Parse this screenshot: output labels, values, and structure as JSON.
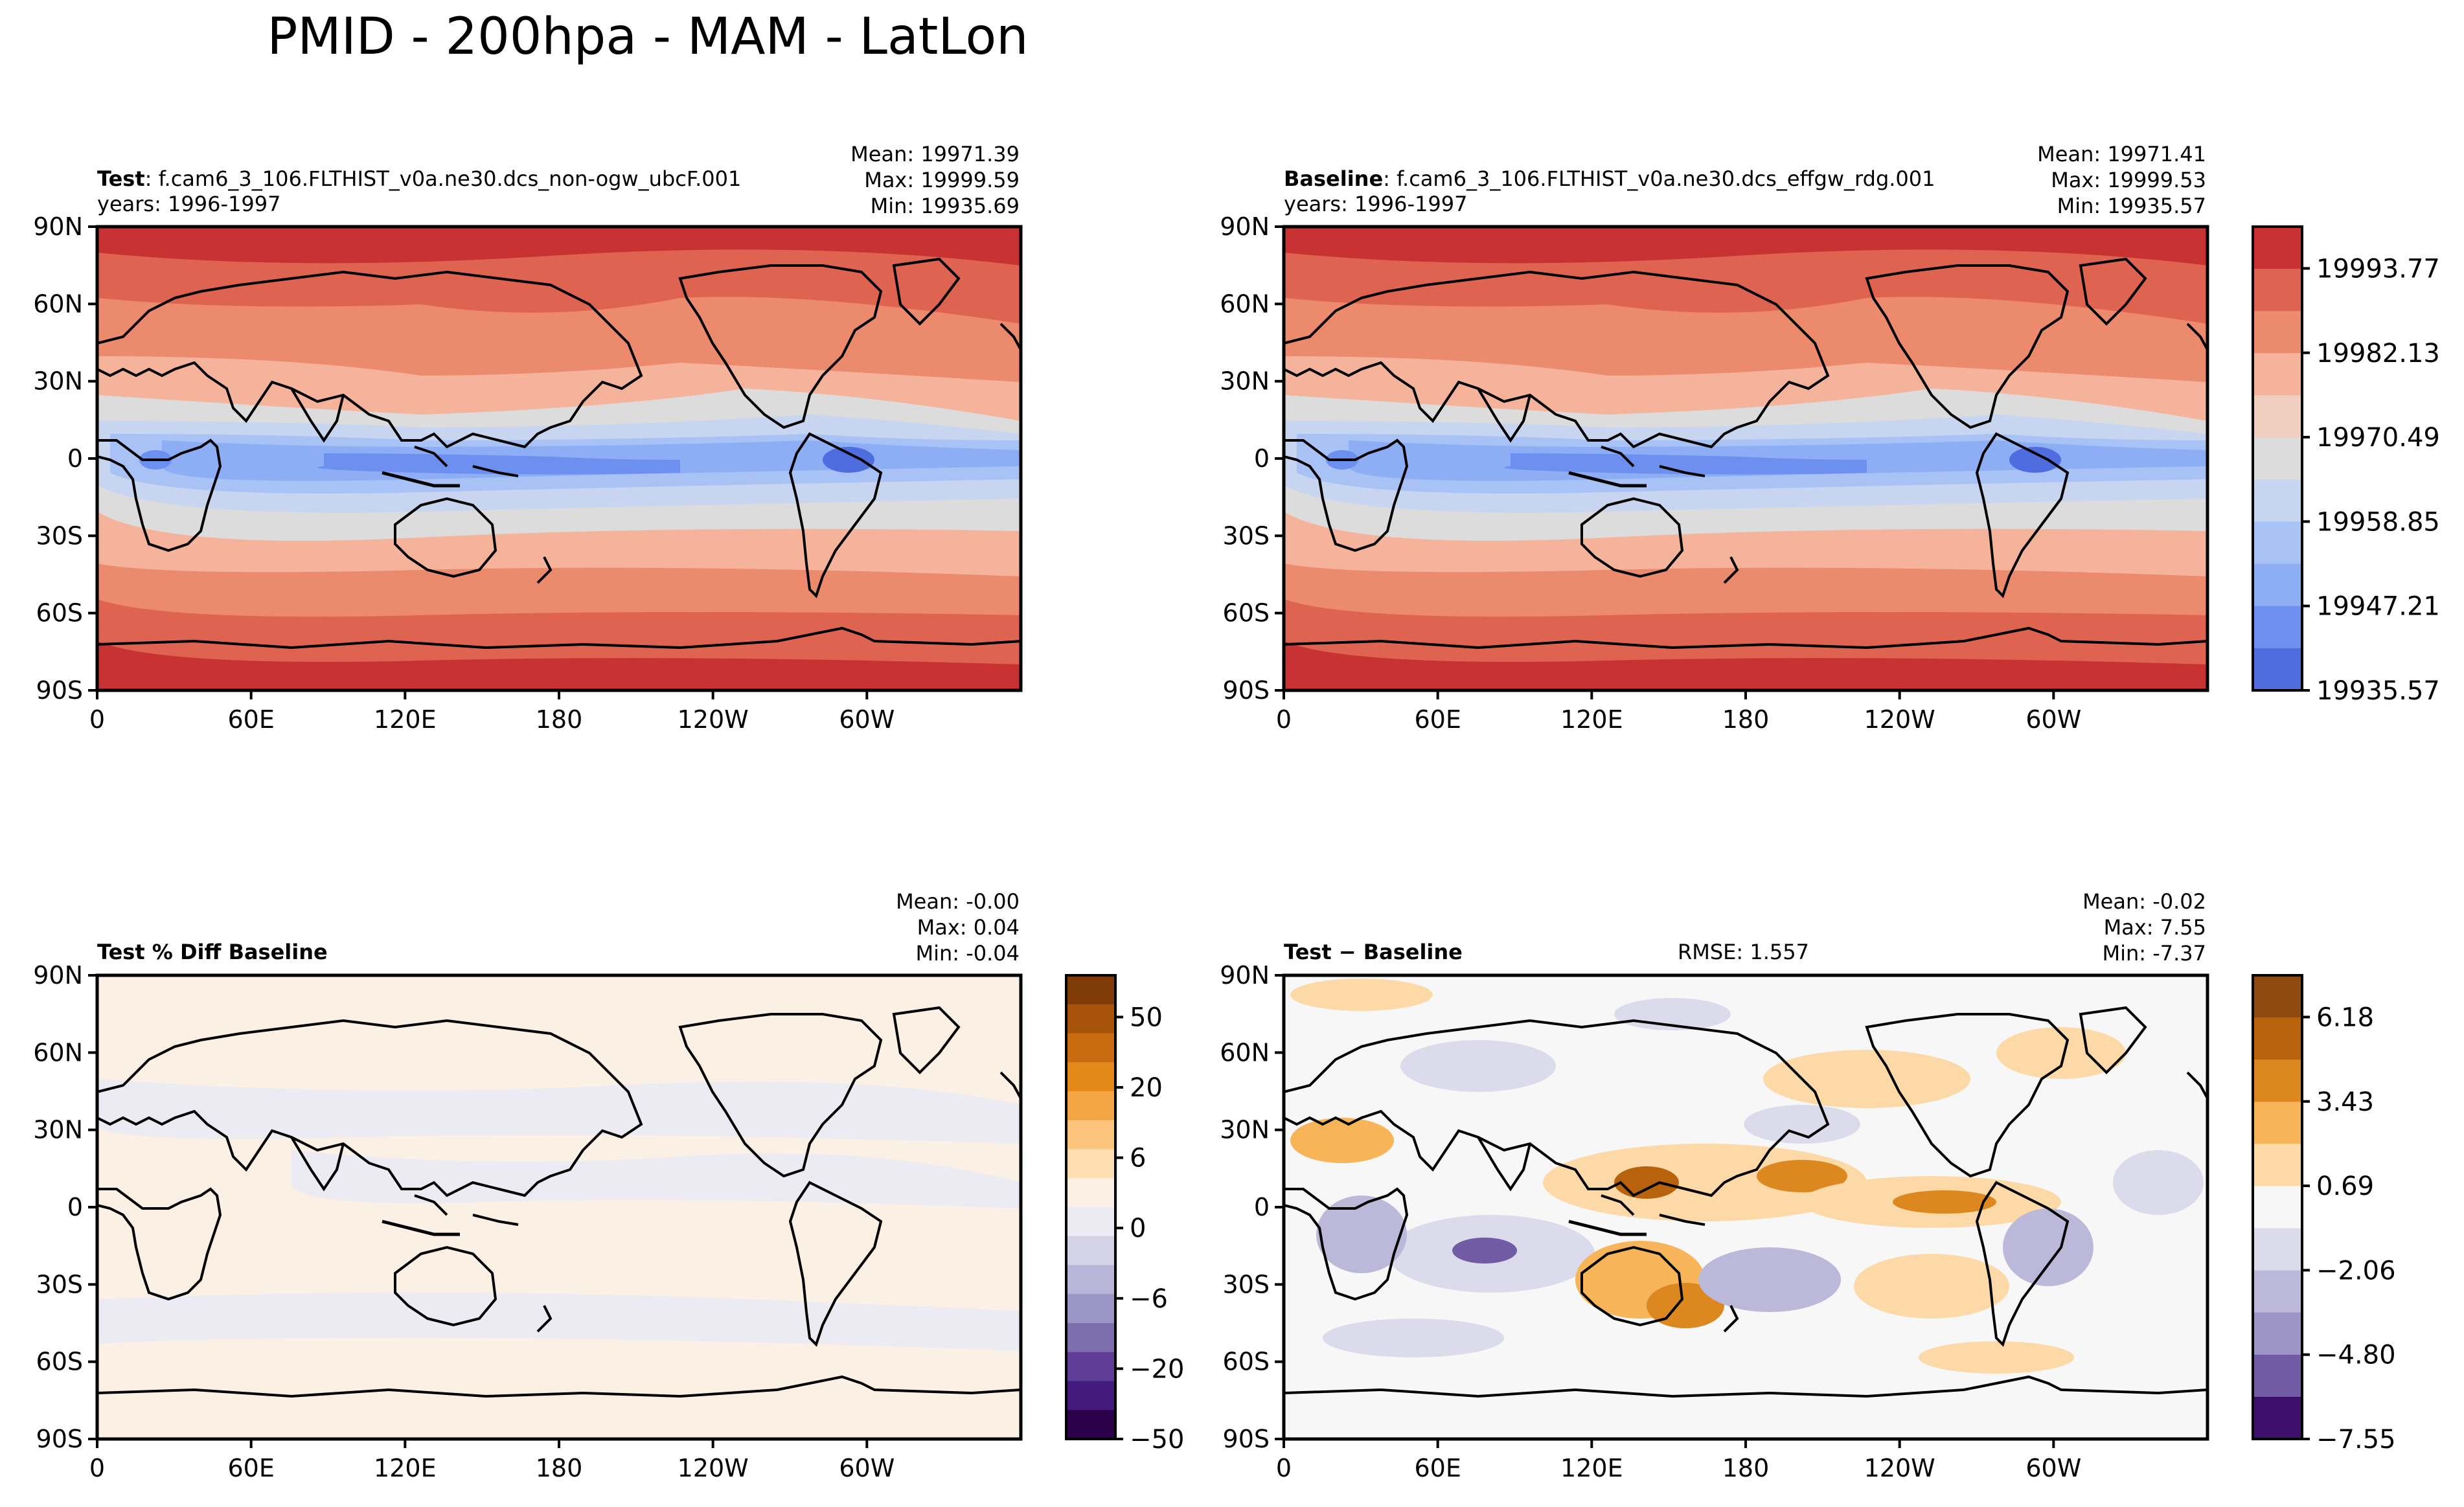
{
  "suptitle": "PMID - 200hpa - MAM - LatLon",
  "panels": {
    "test": {
      "label": "Test",
      "case": ": f.cam6_3_106.FLTHIST_v0a.ne30.dcs_non-ogw_ubcF.001",
      "years": "years: 1996-1997",
      "mean": "Mean: 19971.39",
      "max": "Max: 19999.59",
      "min": "Min: 19935.69"
    },
    "baseline": {
      "label": "Baseline",
      "case": ": f.cam6_3_106.FLTHIST_v0a.ne30.dcs_effgw_rdg.001",
      "years": "years: 1996-1997",
      "mean": "Mean: 19971.41",
      "max": "Max: 19999.53",
      "min": "Min: 19935.57"
    },
    "pctdiff": {
      "label": "Test % Diff Baseline",
      "mean": "Mean: -0.00",
      "max": "Max:  0.04",
      "min": "Min: -0.04"
    },
    "diff": {
      "label": "Test − Baseline",
      "rmse": "RMSE: 1.557",
      "mean": "Mean: -0.02",
      "max": "Max:  7.55",
      "min": "Min: -7.37"
    }
  },
  "axes": {
    "lat_labels": [
      "90N",
      "60N",
      "30N",
      "0",
      "30S",
      "60S",
      "90S"
    ],
    "lon_labels": [
      "0",
      "60E",
      "120E",
      "180",
      "120W",
      "60W"
    ]
  },
  "colorbars": {
    "field": {
      "labels": [
        "19993.77",
        "19982.13",
        "19970.49",
        "19958.85",
        "19947.21",
        "19935.57"
      ],
      "colors": [
        "#c83232",
        "#de6451",
        "#ec8a6e",
        "#f4b39a",
        "#f1cfc0",
        "#dcdcdc",
        "#c7d5f1",
        "#a9c2f5",
        "#8daef5",
        "#6c8ff0",
        "#4f6ddf"
      ]
    },
    "pct": {
      "labels": [
        "50",
        "20",
        "6",
        "0",
        "−6",
        "−20",
        "−50"
      ],
      "colors": [
        "#7f3b08",
        "#a7540a",
        "#c96c11",
        "#e2891a",
        "#f3a545",
        "#fdc47e",
        "#fddfb3",
        "#faf0e3",
        "#ecebf3",
        "#d4d2e7",
        "#b9b5d8",
        "#9b95c5",
        "#7d6ead",
        "#5f3d97",
        "#451a7e",
        "#2d004b"
      ]
    },
    "diff": {
      "labels": [
        "6.18",
        "3.43",
        "0.69",
        "−2.06",
        "−4.80",
        "−7.55"
      ],
      "colors": [
        "#8f4a0f",
        "#b9620d",
        "#dd8720",
        "#f8b458",
        "#fdd9a7",
        "#f7f7f7",
        "#dcdbec",
        "#bcb8d9",
        "#9b94c5",
        "#705ba4",
        "#3f0f6d"
      ]
    }
  }
}
